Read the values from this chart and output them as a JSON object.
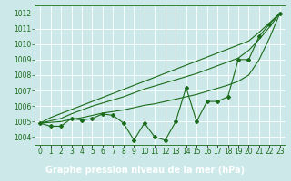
{
  "title": "Graphe pression niveau de la mer (hPa)",
  "hours": [
    0,
    1,
    2,
    3,
    4,
    5,
    6,
    7,
    8,
    9,
    10,
    11,
    12,
    13,
    14,
    15,
    16,
    17,
    18,
    19,
    20,
    21,
    22,
    23
  ],
  "x_labels": [
    "0",
    "1",
    "2",
    "3",
    "4",
    "5",
    "6",
    "7",
    "8",
    "9",
    "10",
    "11",
    "12",
    "13",
    "14",
    "15",
    "16",
    "17",
    "18",
    "19",
    "20",
    "21",
    "22",
    "23"
  ],
  "line_actual": [
    1004.9,
    1004.7,
    1004.7,
    1005.2,
    1005.1,
    1005.2,
    1005.5,
    1005.4,
    1004.9,
    1003.8,
    1004.9,
    1004.0,
    1003.8,
    1005.0,
    1007.2,
    1005.0,
    1006.3,
    1006.3,
    1006.6,
    1009.0,
    1009.0,
    1010.5,
    1011.3,
    1012.0
  ],
  "line_envelope1": [
    1004.9,
    1005.05,
    1005.2,
    1005.5,
    1005.75,
    1006.0,
    1006.2,
    1006.4,
    1006.6,
    1006.85,
    1007.1,
    1007.3,
    1007.5,
    1007.7,
    1007.9,
    1008.1,
    1008.35,
    1008.6,
    1008.85,
    1009.1,
    1009.6,
    1010.3,
    1011.1,
    1012.0
  ],
  "line_envelope2": [
    1004.9,
    1004.95,
    1005.0,
    1005.15,
    1005.25,
    1005.4,
    1005.55,
    1005.65,
    1005.75,
    1005.9,
    1006.05,
    1006.15,
    1006.3,
    1006.45,
    1006.6,
    1006.75,
    1006.95,
    1007.15,
    1007.35,
    1007.6,
    1008.0,
    1009.0,
    1010.4,
    1012.0
  ],
  "line_straight": [
    1004.9,
    1005.26,
    1005.52,
    1005.78,
    1006.04,
    1006.3,
    1006.56,
    1006.82,
    1007.08,
    1007.34,
    1007.6,
    1007.86,
    1008.12,
    1008.38,
    1008.64,
    1008.9,
    1009.16,
    1009.42,
    1009.68,
    1009.94,
    1010.2,
    1010.76,
    1011.38,
    1012.0
  ],
  "ylim": [
    1003.5,
    1012.5
  ],
  "yticks": [
    1004,
    1005,
    1006,
    1007,
    1008,
    1009,
    1010,
    1011,
    1012
  ],
  "line_color": "#1a6b1a",
  "bg_color": "#cce8e8",
  "grid_color": "#b0d8d8",
  "title_bg": "#2d7a2d",
  "title_color": "#ffffff",
  "title_fontsize": 7.0,
  "tick_fontsize": 5.5,
  "marker": "D",
  "marker_size": 2.0,
  "lw": 0.8
}
